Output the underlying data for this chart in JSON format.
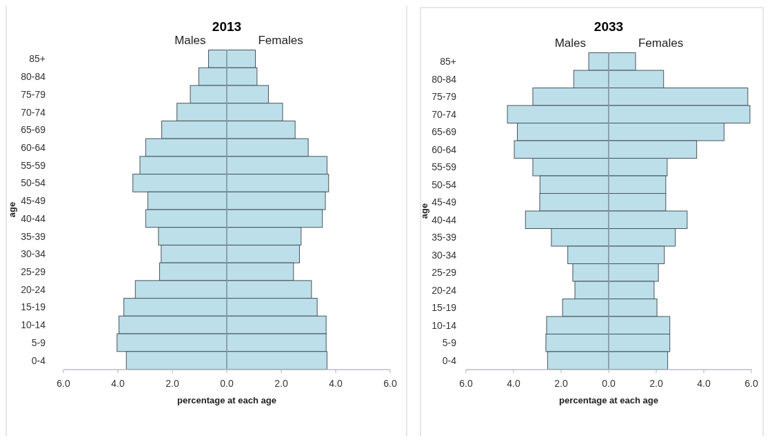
{
  "chart_data": [
    {
      "type": "bar",
      "orientation": "horizontal",
      "stacked": true,
      "title": "2013",
      "xlabel": "percentage at each age",
      "ylabel": "age",
      "categories": [
        "85+",
        "80-84",
        "75-79",
        "70-74",
        "65-69",
        "60-64",
        "55-59",
        "50-54",
        "45-49",
        "40-44",
        "35-39",
        "30-34",
        "25-29",
        "20-24",
        "15-19",
        "10-14",
        "5-9",
        "0-4"
      ],
      "xlim": [
        -6,
        6
      ],
      "xticks": [
        {
          "value": -6,
          "label": "6.0"
        },
        {
          "value": -4,
          "label": "4.0"
        },
        {
          "value": -2,
          "label": "2.0"
        },
        {
          "value": 0,
          "label": "0.0"
        },
        {
          "value": 2,
          "label": "2.0"
        },
        {
          "value": 4,
          "label": "4.0"
        },
        {
          "value": 6,
          "label": "6.0"
        }
      ],
      "series": [
        {
          "name": "Males",
          "color": "#bcdfea",
          "values": [
            -0.67,
            -1.03,
            -1.34,
            -1.83,
            -2.39,
            -2.98,
            -3.19,
            -3.45,
            -2.9,
            -2.98,
            -2.51,
            -2.41,
            -2.47,
            -3.36,
            -3.78,
            -3.96,
            -4.03,
            -3.69
          ]
        },
        {
          "name": "Females",
          "color": "#bcdfea",
          "values": [
            1.05,
            1.11,
            1.53,
            2.05,
            2.51,
            2.99,
            3.68,
            3.74,
            3.62,
            3.51,
            2.73,
            2.67,
            2.45,
            3.11,
            3.32,
            3.65,
            3.65,
            3.68
          ]
        }
      ]
    },
    {
      "type": "bar",
      "orientation": "horizontal",
      "stacked": true,
      "title": "2033",
      "xlabel": "percentage at each age",
      "ylabel": "age",
      "categories": [
        "85+",
        "80-84",
        "75-79",
        "70-74",
        "65-69",
        "60-64",
        "55-59",
        "50-54",
        "45-49",
        "40-44",
        "35-39",
        "30-34",
        "25-29",
        "20-24",
        "15-19",
        "10-14",
        "5-9",
        "0-4"
      ],
      "xlim": [
        -6,
        6
      ],
      "xticks": [
        {
          "value": -6,
          "label": "6.0"
        },
        {
          "value": -4,
          "label": "4.0"
        },
        {
          "value": -2,
          "label": "2.0"
        },
        {
          "value": 0,
          "label": "0.0"
        },
        {
          "value": 2,
          "label": "2.0"
        },
        {
          "value": 4,
          "label": "4.0"
        },
        {
          "value": 6,
          "label": "6.0"
        }
      ],
      "series": [
        {
          "name": "Males",
          "color": "#bcdfea",
          "values": [
            -0.84,
            -1.47,
            -3.19,
            -4.26,
            -3.84,
            -3.97,
            -3.19,
            -2.89,
            -2.9,
            -3.5,
            -2.41,
            -1.72,
            -1.51,
            -1.42,
            -1.94,
            -2.61,
            -2.64,
            -2.57
          ]
        },
        {
          "name": "Females",
          "color": "#bcdfea",
          "values": [
            1.13,
            2.31,
            5.85,
            5.94,
            4.85,
            3.7,
            2.46,
            2.4,
            2.4,
            3.3,
            2.8,
            2.34,
            2.09,
            1.91,
            2.03,
            2.57,
            2.57,
            2.48
          ]
        }
      ]
    }
  ]
}
